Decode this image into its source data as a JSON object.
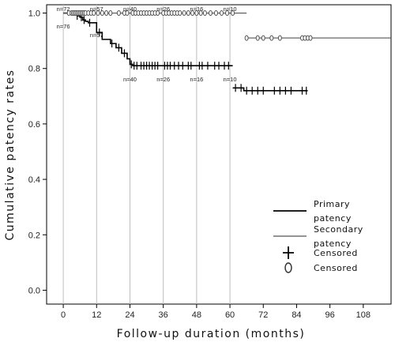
{
  "chart_data": {
    "type": "line",
    "subtype": "kaplan-meier",
    "title": "",
    "xlabel": "Follow-up duration (months)",
    "ylabel": "Cumulative patency rates",
    "xlim": [
      -6,
      118
    ],
    "ylim": [
      -0.05,
      1.03
    ],
    "xticks": [
      "0",
      "12",
      "24",
      "36",
      "48",
      "60",
      "72",
      "84",
      "96",
      "108"
    ],
    "yticks": [
      "0.0",
      "0.2",
      "0.4",
      "0.6",
      "0.8",
      "1.0"
    ],
    "vgrid_x": [
      0,
      12,
      24,
      36,
      48,
      60
    ],
    "series": [
      {
        "name": "Primary patency",
        "color": "#000000",
        "steps": [
          [
            0,
            1.0
          ],
          [
            5,
            0.99
          ],
          [
            6,
            0.985
          ],
          [
            7,
            0.975
          ],
          [
            8,
            0.97
          ],
          [
            9,
            0.965
          ],
          [
            12,
            0.93
          ],
          [
            14,
            0.905
          ],
          [
            17,
            0.89
          ],
          [
            19,
            0.875
          ],
          [
            21,
            0.855
          ],
          [
            23,
            0.835
          ],
          [
            24,
            0.815
          ],
          [
            25,
            0.81
          ],
          [
            61,
            0.81
          ],
          [
            61,
            0.73
          ],
          [
            65,
            0.72
          ],
          [
            88,
            0.72
          ]
        ],
        "censored": [
          5,
          6.5,
          7.5,
          9.5,
          13,
          17.5,
          20,
          22,
          24.5,
          25.5,
          26.5,
          28,
          29,
          30,
          31,
          32,
          33,
          34,
          36.5,
          37.5,
          38.5,
          40,
          41.5,
          43,
          45,
          46,
          49,
          50,
          52,
          54.5,
          56,
          58,
          59.5,
          62,
          64,
          66,
          68,
          70,
          72,
          76,
          78,
          80,
          82,
          86,
          87.5
        ],
        "censored_marker": "+"
      },
      {
        "name": "Secondary patency",
        "color": "#555555",
        "steps": [
          [
            0,
            1.0
          ],
          [
            66,
            1.0
          ],
          [
            66,
            0.91
          ],
          [
            118,
            0.91
          ]
        ],
        "censored": [
          2,
          3,
          3.5,
          4,
          4.5,
          5,
          5.5,
          6,
          6.5,
          7,
          7.5,
          8,
          9,
          10,
          11,
          12.5,
          14,
          15.5,
          17,
          20,
          22,
          23,
          25,
          26,
          27,
          28,
          29,
          30,
          31,
          32,
          33,
          34,
          36,
          37,
          38,
          39,
          40,
          41,
          42,
          43.5,
          45,
          46.5,
          48,
          49.5,
          51,
          53,
          55,
          57,
          59,
          61,
          66,
          70,
          72,
          75,
          78,
          86,
          87,
          88,
          89
        ],
        "censored_marker": "0"
      }
    ],
    "risk_labels": {
      "top": [
        {
          "x": 0,
          "text": "n=72"
        },
        {
          "x": 12,
          "text": "n=57"
        },
        {
          "x": 24,
          "text": "n=40"
        },
        {
          "x": 36,
          "text": "n=26"
        },
        {
          "x": 48,
          "text": "n=16"
        },
        {
          "x": 60,
          "text": "n=10"
        }
      ],
      "bottom": [
        {
          "x": 0,
          "text": "n=76"
        },
        {
          "x": 12,
          "text": "n=57"
        },
        {
          "x": 24,
          "text": "n=40"
        },
        {
          "x": 36,
          "text": "n=26"
        },
        {
          "x": 48,
          "text": "n=16"
        },
        {
          "x": 60,
          "text": "n=10"
        }
      ]
    },
    "legend": {
      "placement": "bottom-right",
      "entries": [
        {
          "kind": "line",
          "color": "#000000",
          "lines": [
            "Primary",
            "patency"
          ]
        },
        {
          "kind": "line",
          "color": "#555555",
          "lines": [
            "Secondary",
            "patency"
          ]
        },
        {
          "kind": "plus",
          "lines": [
            "Censored"
          ]
        },
        {
          "kind": "oval",
          "lines": [
            "Censored"
          ]
        }
      ]
    }
  }
}
